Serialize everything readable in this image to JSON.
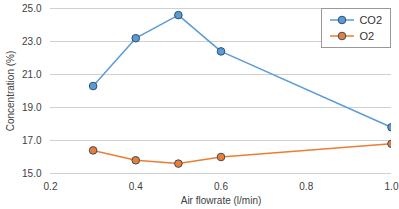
{
  "chart_data": {
    "type": "line",
    "x_label": "Air flowrate (l/min)",
    "y_label": "Concentration (%)",
    "x": [
      0.3,
      0.4,
      0.5,
      0.6,
      1.0
    ],
    "series": [
      {
        "name": "CO2",
        "color": "#5b9bd5",
        "marker": "circle",
        "values": [
          20.3,
          23.2,
          24.6,
          22.4,
          17.8
        ]
      },
      {
        "name": "O2",
        "color": "#ed7d31",
        "marker": "circle",
        "values": [
          16.4,
          15.8,
          15.6,
          16.0,
          16.8
        ]
      }
    ],
    "xlim": [
      0.2,
      1.0
    ],
    "xticks": [
      0.2,
      0.4,
      0.6,
      0.8,
      {
        "value": 1,
        "label": "1.0"
      }
    ],
    "ylim": [
      15,
      25
    ],
    "yticks": [
      {
        "value": 15,
        "label": "15.0"
      },
      {
        "value": 17,
        "label": "17.0"
      },
      {
        "value": 19,
        "label": "19.0"
      },
      {
        "value": 21,
        "label": "21.0"
      },
      {
        "value": 23,
        "label": "23.0"
      },
      {
        "value": 25,
        "label": "25.0"
      }
    ],
    "grid": true,
    "legend": "top-right"
  }
}
